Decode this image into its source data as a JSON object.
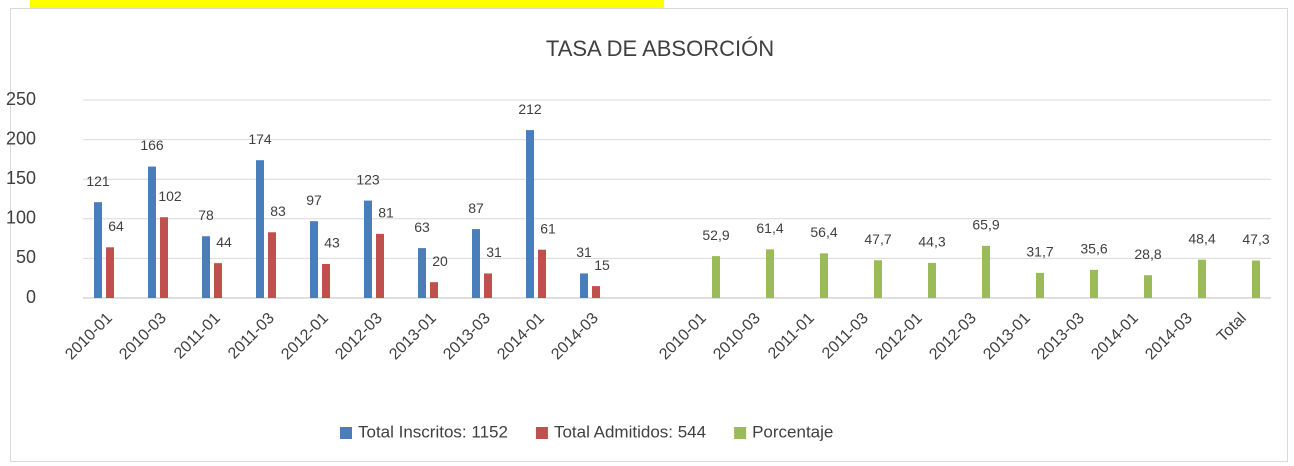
{
  "chart_data": {
    "type": "bar",
    "title": "TASA DE ABSORCIÓN",
    "categories": [
      "2010-01",
      "2010-03",
      "2011-01",
      "2011-03",
      "2012-01",
      "2012-03",
      "2013-01",
      "2013-03",
      "2014-01",
      "2014-03",
      null,
      "2010-01",
      "2010-03",
      "2011-01",
      "2011-03",
      "2012-01",
      "2012-03",
      "2013-01",
      "2013-03",
      "2014-01",
      "2014-03",
      "Total"
    ],
    "series": [
      {
        "name": "Total Inscritos: 1152",
        "color": "#4a7ebb",
        "values": [
          121,
          166,
          78,
          174,
          97,
          123,
          63,
          87,
          212,
          31,
          null,
          null,
          null,
          null,
          null,
          null,
          null,
          null,
          null,
          null,
          null,
          null
        ]
      },
      {
        "name": "Total Admitidos: 544",
        "color": "#c0504d",
        "values": [
          64,
          102,
          44,
          83,
          43,
          81,
          20,
          31,
          61,
          15,
          null,
          null,
          null,
          null,
          null,
          null,
          null,
          null,
          null,
          null,
          null,
          null
        ]
      },
      {
        "name": "Porcentaje",
        "color": "#9bbb59",
        "values": [
          null,
          null,
          null,
          null,
          null,
          null,
          null,
          null,
          null,
          null,
          null,
          52.9,
          61.4,
          56.4,
          47.7,
          44.3,
          65.9,
          31.7,
          35.6,
          28.8,
          48.4,
          47.3
        ],
        "value_labels": [
          null,
          null,
          null,
          null,
          null,
          null,
          null,
          null,
          null,
          null,
          null,
          "52,9",
          "61,4",
          "56,4",
          "47,7",
          "44,3",
          "65,9",
          "31,7",
          "35,6",
          "28,8",
          "48,4",
          "47,3"
        ]
      }
    ],
    "ylim": [
      0,
      250
    ],
    "yticks": [
      0,
      50,
      100,
      150,
      200,
      250
    ],
    "grid": true,
    "legend": "bottom"
  }
}
